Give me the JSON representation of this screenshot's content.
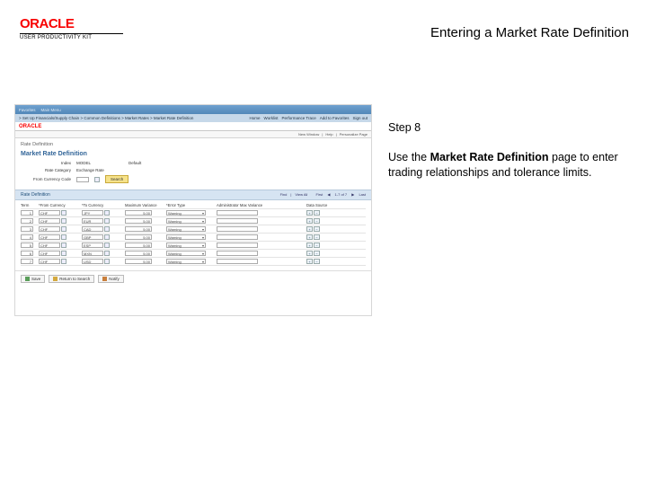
{
  "logo": {
    "brand": "ORACLE",
    "kit": "USER PRODUCTIVITY KIT"
  },
  "page_title": "Entering a Market Rate Definition",
  "step": {
    "label": "Step 8"
  },
  "instruction": {
    "prefix": "Use the ",
    "bold": "Market Rate Definition",
    "suffix": " page to enter trading relationships and tolerance limits."
  },
  "screenshot": {
    "topbar": {
      "items": [
        "Favorites",
        "Main Menu",
        "> Set Up Financials/Supply Chain",
        "> Common Definitions",
        "> Market Rates",
        "> Market Rate Definition"
      ],
      "right": [
        "Home",
        "Worklist",
        "Performance Trace",
        "Add to Favorites",
        "Sign out"
      ]
    },
    "mini_logo": "ORACLE",
    "subnav": {
      "items": [
        "New Window",
        "Help",
        "Personalize Page"
      ]
    },
    "section_title": "Rate Definition",
    "page_heading": "Market Rate Definition",
    "form": {
      "index_label": "Index",
      "index_value": "MODEL",
      "default_label": "Default",
      "rate_cat_label": "Rate Category",
      "rate_cat_value": "Exchange Rate",
      "from_cur_label": "From Currency Code",
      "search_btn": "Search"
    },
    "table": {
      "title": "Rate Definition",
      "nav": [
        "Find",
        "View All",
        "First",
        "1-7 of 7",
        "Last"
      ],
      "columns": [
        "Term",
        "*From Currency",
        "*To Currency",
        "Maximum Variance",
        "*Error Type",
        "Administrator Max Variance",
        "Data Source"
      ],
      "rows": [
        {
          "term": "1",
          "from": "CHF",
          "to": "JPY",
          "maxvar": "5.00",
          "err": "Warning",
          "admin": ""
        },
        {
          "term": "2",
          "from": "CHF",
          "to": "EUR",
          "maxvar": "5.00",
          "err": "Warning",
          "admin": ""
        },
        {
          "term": "3",
          "from": "CHF",
          "to": "CAD",
          "maxvar": "5.00",
          "err": "Warning",
          "admin": ""
        },
        {
          "term": "4",
          "from": "CHF",
          "to": "GBP",
          "maxvar": "5.00",
          "err": "Warning",
          "admin": ""
        },
        {
          "term": "5",
          "from": "CHF",
          "to": "ESP",
          "maxvar": "5.00",
          "err": "Warning",
          "admin": ""
        },
        {
          "term": "6",
          "from": "CHF",
          "to": "MXN",
          "maxvar": "5.00",
          "err": "Warning",
          "admin": ""
        },
        {
          "term": "7",
          "from": "CHF",
          "to": "USD",
          "maxvar": "5.00",
          "err": "Warning",
          "admin": ""
        }
      ]
    },
    "footer": {
      "save": "Save",
      "return": "Return to Search",
      "notify": "Notify"
    }
  }
}
